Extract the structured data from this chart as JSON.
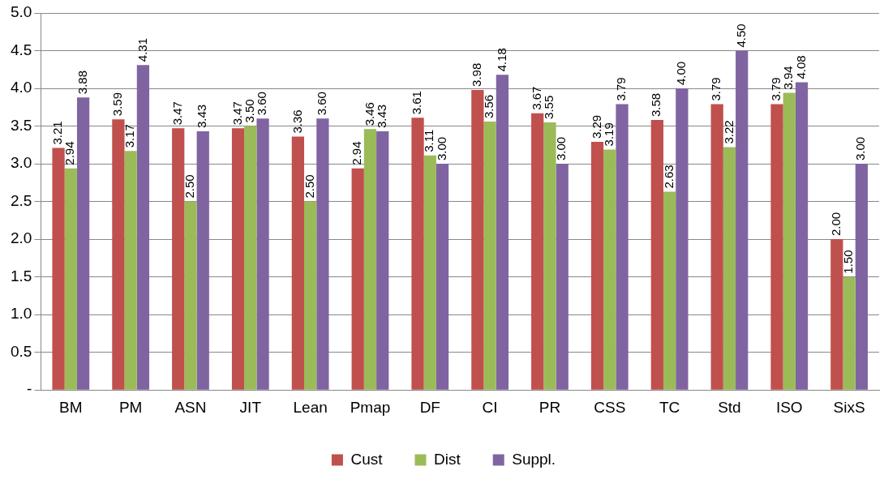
{
  "chart_data": {
    "type": "bar",
    "categories": [
      "BM",
      "PM",
      "ASN",
      "JIT",
      "Lean",
      "Pmap",
      "DF",
      "CI",
      "PR",
      "CSS",
      "TC",
      "Std",
      "ISO",
      "SixS"
    ],
    "series": [
      {
        "name": "Cust",
        "color": "#c0504d",
        "values": [
          3.21,
          3.59,
          3.47,
          3.47,
          3.36,
          2.94,
          3.61,
          3.98,
          3.67,
          3.29,
          3.58,
          3.79,
          3.79,
          2.0
        ],
        "value_labels": [
          "3.21",
          "3.59",
          "3.47",
          "3.47",
          "3.36",
          "2.94",
          "3.61",
          "3.98",
          "3.67",
          "3.29",
          "3.58",
          "3.79",
          "3.79",
          "2.00"
        ]
      },
      {
        "name": "Dist",
        "color": "#9bbb59",
        "values": [
          2.94,
          3.17,
          2.5,
          3.5,
          2.5,
          3.46,
          3.11,
          3.56,
          3.55,
          3.19,
          2.63,
          3.22,
          3.94,
          1.5
        ],
        "value_labels": [
          "2.94",
          "3.17",
          "2.50",
          "3.50",
          "2.50",
          "3.46",
          "3.11",
          "3.56",
          "3.55",
          "3.19",
          "2.63",
          "3.22",
          "3.94",
          "1.50"
        ]
      },
      {
        "name": "Suppl.",
        "color": "#8064a2",
        "values": [
          3.88,
          4.31,
          3.43,
          3.6,
          3.6,
          3.43,
          3.0,
          4.18,
          3.0,
          3.79,
          4.0,
          4.5,
          4.08,
          3.0
        ],
        "value_labels": [
          "3.88",
          "4.31",
          "3.43",
          "3.60",
          "3.60",
          "3.43",
          "3.00",
          "4.18",
          "3.00",
          "3.79",
          "4.00",
          "4.50",
          "4.08",
          "3.00"
        ]
      }
    ],
    "ylim": [
      0,
      5
    ],
    "yticks": [
      {
        "value": 0,
        "label": "-"
      },
      {
        "value": 0.5,
        "label": "0.5"
      },
      {
        "value": 1,
        "label": "1.0"
      },
      {
        "value": 1.5,
        "label": "1.5"
      },
      {
        "value": 2,
        "label": "2.0"
      },
      {
        "value": 2.5,
        "label": "2.5"
      },
      {
        "value": 3,
        "label": "3.0"
      },
      {
        "value": 3.5,
        "label": "3.5"
      },
      {
        "value": 4,
        "label": "4.0"
      },
      {
        "value": 4.5,
        "label": "4.5"
      },
      {
        "value": 5,
        "label": "5.0"
      }
    ],
    "grid": "y",
    "legend": "bottom"
  }
}
